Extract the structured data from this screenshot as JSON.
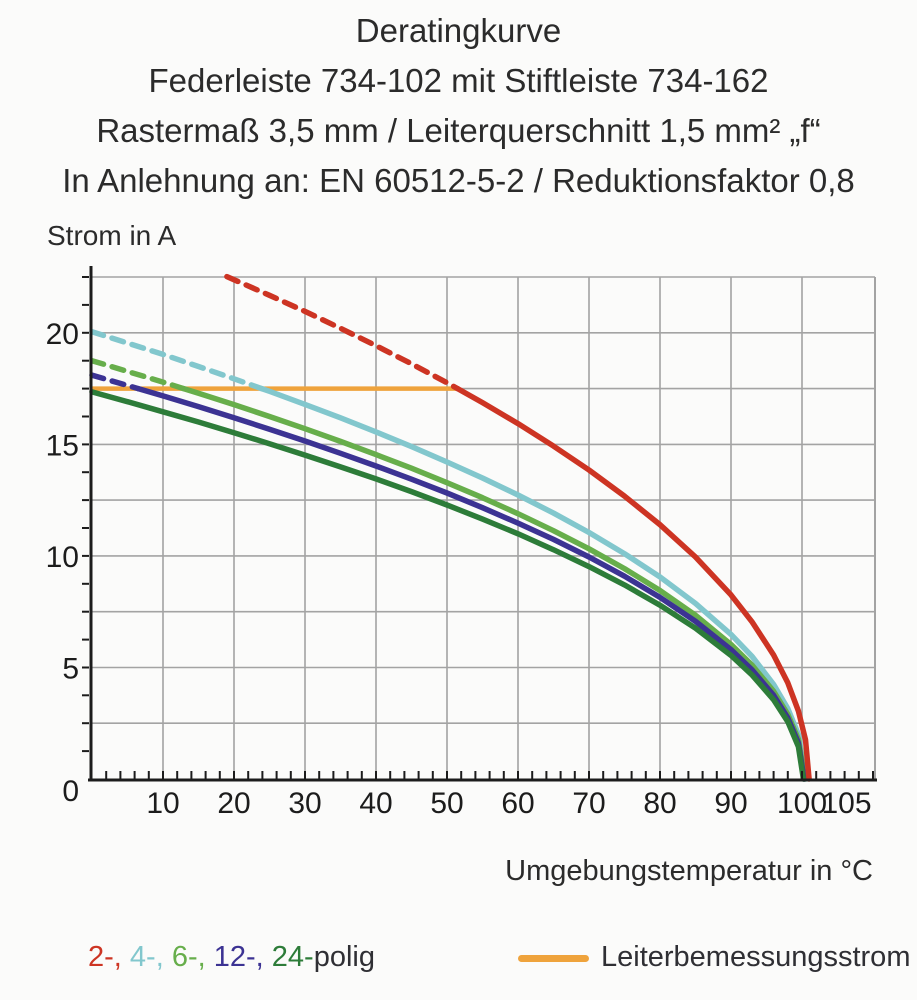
{
  "title": {
    "line1": "Deratingkurve",
    "line2": "Federleiste 734-102 mit Stiftleiste 734-162",
    "line3": "Rastermaß 3,5 mm / Leiterquerschnitt 1,5 mm² „f“",
    "line4": "In Anlehnung an: EN 60512-5-2 / Reduktionsfaktor 0,8"
  },
  "legend": {
    "pole_items": [
      {
        "label": "2-,",
        "color": "#cd3423"
      },
      {
        "label": "4-,",
        "color": "#82c7cd"
      },
      {
        "label": "6-,",
        "color": "#67ae4b"
      },
      {
        "label": "12-,",
        "color": "#3c3393"
      },
      {
        "label": "24-",
        "color": "#2d7c39"
      }
    ],
    "pole_suffix": "polig",
    "pole_suffix_color": "#2f2f34",
    "rated": {
      "label": "Leiterbemessungsstrom",
      "color": "#efa33c"
    }
  },
  "chart_data": {
    "type": "line",
    "title": "Deratingkurve",
    "xlabel": "Umgebungstemperatur in °C",
    "ylabel": "Strom in A",
    "xlim": [
      0,
      110.3
    ],
    "ylim": [
      0,
      22.5
    ],
    "grid": true,
    "x_grid_step": 10,
    "y_grid_step": 2.5,
    "x_minor_tick_step": 2,
    "y_minor_tick_step": 1.25,
    "x_tick_labels": [
      10,
      20,
      30,
      40,
      50,
      60,
      70,
      80,
      90,
      100,
      105
    ],
    "y_tick_labels": [
      0,
      5,
      10,
      15,
      20
    ],
    "style": {
      "grid_color": "#a3a3a3",
      "axis_color": "#1c1c1c",
      "background": "#fbfbfa"
    },
    "rated_current_line": {
      "name": "Leiterbemessungsstrom",
      "value": 17.5,
      "x_from": 0,
      "x_to": 51.5,
      "color": "#efa33c"
    },
    "series": [
      {
        "name": "4-polig",
        "color": "#82c7cd",
        "dashed": [
          [
            0,
            20.05
          ],
          [
            5,
            19.54
          ],
          [
            10,
            19.03
          ],
          [
            15,
            18.49
          ],
          [
            20,
            17.94
          ],
          [
            23.9,
            17.5
          ]
        ],
        "solid": [
          [
            23.9,
            17.5
          ],
          [
            25,
            17.38
          ],
          [
            30,
            16.79
          ],
          [
            35,
            16.19
          ],
          [
            40,
            15.56
          ],
          [
            45,
            14.9
          ],
          [
            50,
            14.21
          ],
          [
            55,
            13.49
          ],
          [
            60,
            12.73
          ],
          [
            65,
            11.92
          ],
          [
            70,
            11.05
          ],
          [
            75,
            10.1
          ],
          [
            80,
            9.06
          ],
          [
            85,
            7.87
          ],
          [
            90,
            6.48
          ],
          [
            93,
            5.48
          ],
          [
            96,
            4.24
          ],
          [
            98,
            3.16
          ],
          [
            99.5,
            2.0
          ],
          [
            100.5,
            0
          ]
        ]
      },
      {
        "name": "6-polig",
        "color": "#67ae4b",
        "dashed": [
          [
            0,
            18.75
          ],
          [
            5,
            18.27
          ],
          [
            10,
            17.79
          ],
          [
            12.9,
            17.5
          ]
        ],
        "solid": [
          [
            12.9,
            17.5
          ],
          [
            15,
            17.29
          ],
          [
            20,
            16.78
          ],
          [
            25,
            16.25
          ],
          [
            30,
            15.7
          ],
          [
            35,
            15.13
          ],
          [
            40,
            14.54
          ],
          [
            45,
            13.93
          ],
          [
            50,
            13.28
          ],
          [
            55,
            12.61
          ],
          [
            60,
            11.89
          ],
          [
            65,
            11.13
          ],
          [
            70,
            10.32
          ],
          [
            75,
            9.43
          ],
          [
            80,
            8.45
          ],
          [
            85,
            7.34
          ],
          [
            90,
            6.03
          ],
          [
            93,
            5.09
          ],
          [
            96,
            3.93
          ],
          [
            98,
            2.9
          ],
          [
            99.5,
            1.78
          ],
          [
            100.4,
            0
          ]
        ]
      },
      {
        "name": "12-polig",
        "color": "#3c3393",
        "dashed": [
          [
            0,
            18.1
          ],
          [
            5,
            17.64
          ],
          [
            6.5,
            17.5
          ]
        ],
        "solid": [
          [
            6.5,
            17.5
          ],
          [
            10,
            17.17
          ],
          [
            15,
            16.69
          ],
          [
            20,
            16.19
          ],
          [
            25,
            15.68
          ],
          [
            30,
            15.15
          ],
          [
            35,
            14.6
          ],
          [
            40,
            14.03
          ],
          [
            45,
            13.44
          ],
          [
            50,
            12.82
          ],
          [
            55,
            12.16
          ],
          [
            60,
            11.47
          ],
          [
            65,
            10.74
          ],
          [
            70,
            9.95
          ],
          [
            75,
            9.09
          ],
          [
            80,
            8.14
          ],
          [
            85,
            7.07
          ],
          [
            90,
            5.8
          ],
          [
            93,
            4.88
          ],
          [
            96,
            3.75
          ],
          [
            98,
            2.74
          ],
          [
            99.5,
            1.62
          ],
          [
            100.3,
            0
          ]
        ]
      },
      {
        "name": "24-polig",
        "color": "#2d7c39",
        "dashed": [],
        "solid": [
          [
            0,
            17.35
          ],
          [
            5,
            16.91
          ],
          [
            10,
            16.46
          ],
          [
            15,
            16.0
          ],
          [
            20,
            15.52
          ],
          [
            25,
            15.03
          ],
          [
            30,
            14.52
          ],
          [
            35,
            13.99
          ],
          [
            40,
            13.45
          ],
          [
            45,
            12.88
          ],
          [
            50,
            12.28
          ],
          [
            55,
            11.65
          ],
          [
            60,
            10.99
          ],
          [
            65,
            10.28
          ],
          [
            70,
            9.52
          ],
          [
            75,
            8.7
          ],
          [
            80,
            7.79
          ],
          [
            85,
            6.76
          ],
          [
            90,
            5.54
          ],
          [
            93,
            4.65
          ],
          [
            96,
            3.55
          ],
          [
            98,
            2.57
          ],
          [
            99.5,
            1.45
          ],
          [
            100.2,
            0
          ]
        ]
      },
      {
        "name": "2-polig",
        "color": "#cd3423",
        "dashed": [
          [
            19.0,
            22.52
          ],
          [
            25,
            21.68
          ],
          [
            30,
            20.96
          ],
          [
            35,
            20.2
          ],
          [
            40,
            19.42
          ],
          [
            45,
            18.61
          ],
          [
            50,
            17.76
          ],
          [
            51.5,
            17.5
          ]
        ],
        "solid": [
          [
            51.5,
            17.5
          ],
          [
            55,
            16.87
          ],
          [
            60,
            15.93
          ],
          [
            65,
            14.92
          ],
          [
            70,
            13.85
          ],
          [
            75,
            12.68
          ],
          [
            80,
            11.4
          ],
          [
            85,
            9.95
          ],
          [
            90,
            8.25
          ],
          [
            93,
            7.03
          ],
          [
            96,
            5.56
          ],
          [
            98,
            4.31
          ],
          [
            99.5,
            3.05
          ],
          [
            100.5,
            1.76
          ],
          [
            101,
            0
          ]
        ]
      }
    ]
  }
}
